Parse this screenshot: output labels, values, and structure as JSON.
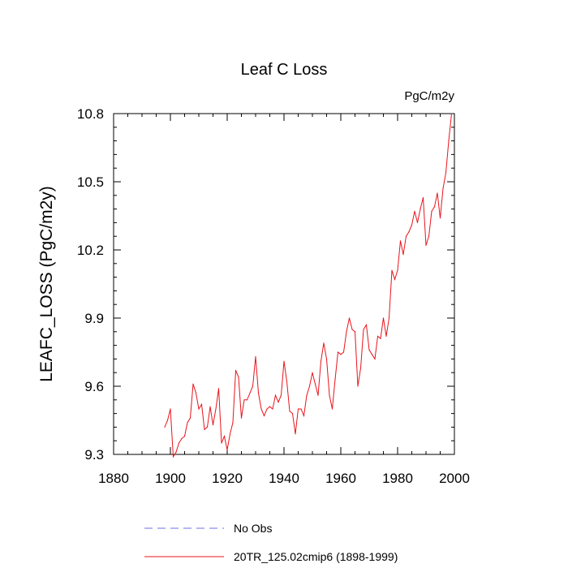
{
  "chart_data": {
    "type": "line",
    "title": "Leaf C Loss",
    "units": "PgC/m2y",
    "xlabel": "",
    "ylabel": "LEAFC_LOSS  (PgC/m2y)",
    "xlim": [
      1880,
      2000
    ],
    "ylim": [
      9.3,
      10.8
    ],
    "xticks": [
      1880,
      1900,
      1920,
      1940,
      1960,
      1980,
      2000
    ],
    "xtick_labels": [
      "1880",
      "1900",
      "1920",
      "1940",
      "1960",
      "1980",
      "2000"
    ],
    "yticks": [
      9.3,
      9.6,
      9.9,
      10.2,
      10.5,
      10.8
    ],
    "ytick_labels": [
      "9.3",
      "9.6",
      "9.9",
      "10.2",
      "10.5",
      "10.8"
    ],
    "grid": false,
    "legend": [
      {
        "label": "No Obs",
        "color": "#6f6fe8",
        "style": "dashed"
      },
      {
        "label": "20TR_125.02cmip6 (1898-1999)",
        "color": "#e8141c",
        "style": "solid"
      }
    ],
    "series": [
      {
        "name": "20TR_125.02cmip6 (1898-1999)",
        "color": "#e8141c",
        "x": [
          1898,
          1899,
          1900,
          1901,
          1902,
          1903,
          1904,
          1905,
          1906,
          1907,
          1908,
          1909,
          1910,
          1911,
          1912,
          1913,
          1914,
          1915,
          1916,
          1917,
          1918,
          1919,
          1920,
          1921,
          1922,
          1923,
          1924,
          1925,
          1926,
          1927,
          1928,
          1929,
          1930,
          1931,
          1932,
          1933,
          1934,
          1935,
          1936,
          1937,
          1938,
          1939,
          1940,
          1941,
          1942,
          1943,
          1944,
          1945,
          1946,
          1947,
          1948,
          1949,
          1950,
          1951,
          1952,
          1953,
          1954,
          1955,
          1956,
          1957,
          1958,
          1959,
          1960,
          1961,
          1962,
          1963,
          1964,
          1965,
          1966,
          1967,
          1968,
          1969,
          1970,
          1971,
          1972,
          1973,
          1974,
          1975,
          1976,
          1977,
          1978,
          1979,
          1980,
          1981,
          1982,
          1983,
          1984,
          1985,
          1986,
          1987,
          1988,
          1989,
          1990,
          1991,
          1992,
          1993,
          1994,
          1995,
          1996,
          1997,
          1998,
          1999
        ],
        "values": [
          9.42,
          9.45,
          9.5,
          9.29,
          9.31,
          9.35,
          9.37,
          9.38,
          9.44,
          9.46,
          9.61,
          9.57,
          9.5,
          9.52,
          9.41,
          9.42,
          9.51,
          9.43,
          9.5,
          9.59,
          9.35,
          9.38,
          9.32,
          9.39,
          9.44,
          9.67,
          9.64,
          9.46,
          9.54,
          9.54,
          9.57,
          9.6,
          9.73,
          9.57,
          9.5,
          9.47,
          9.5,
          9.51,
          9.5,
          9.56,
          9.53,
          9.56,
          9.71,
          9.62,
          9.49,
          9.48,
          9.39,
          9.5,
          9.5,
          9.47,
          9.56,
          9.6,
          9.66,
          9.61,
          9.56,
          9.71,
          9.79,
          9.72,
          9.56,
          9.5,
          9.63,
          9.75,
          9.74,
          9.75,
          9.84,
          9.9,
          9.85,
          9.84,
          9.6,
          9.68,
          9.85,
          9.87,
          9.76,
          9.74,
          9.72,
          9.82,
          9.81,
          9.9,
          9.82,
          9.9,
          10.11,
          10.07,
          10.11,
          10.24,
          10.18,
          10.26,
          10.28,
          10.31,
          10.37,
          10.32,
          10.38,
          10.43,
          10.22,
          10.26,
          10.37,
          10.39,
          10.45,
          10.34,
          10.47,
          10.54,
          10.68,
          10.8
        ]
      },
      {
        "name": "No Obs",
        "color": "#6f6fe8",
        "x": [],
        "values": []
      }
    ]
  }
}
